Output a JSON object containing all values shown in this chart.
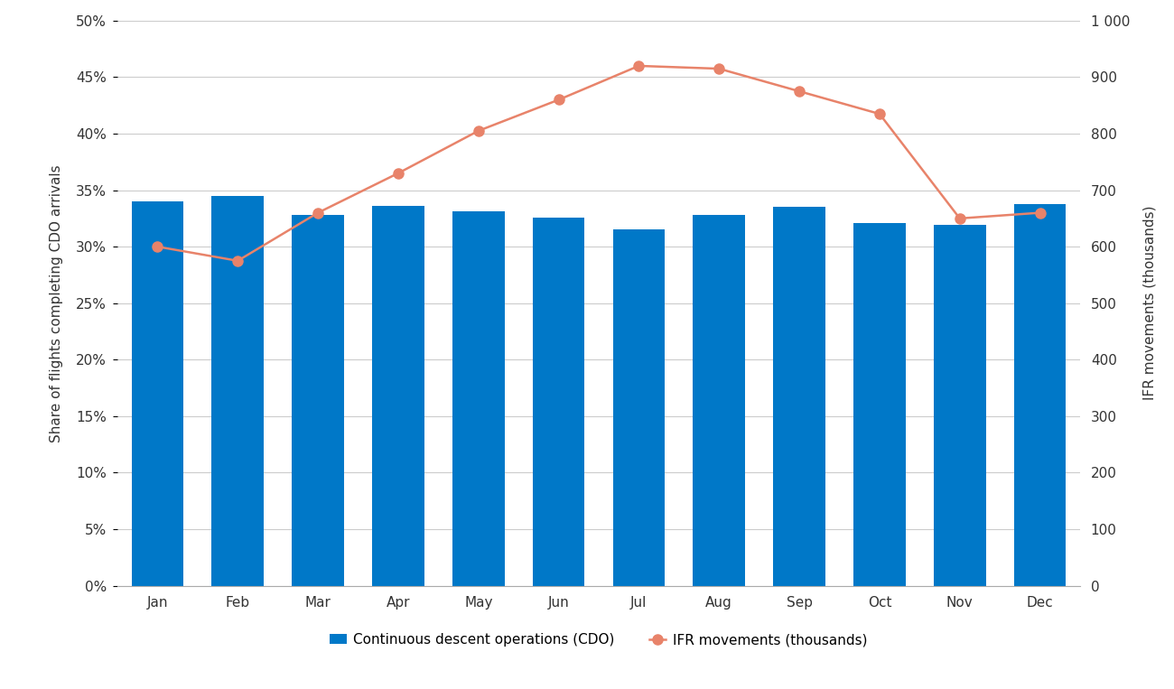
{
  "months": [
    "Jan",
    "Feb",
    "Mar",
    "Apr",
    "May",
    "Jun",
    "Jul",
    "Aug",
    "Sep",
    "Oct",
    "Nov",
    "Dec"
  ],
  "cdo_values": [
    0.34,
    0.345,
    0.328,
    0.336,
    0.331,
    0.326,
    0.315,
    0.328,
    0.335,
    0.321,
    0.319,
    0.338
  ],
  "ifr_values": [
    600,
    575,
    660,
    730,
    805,
    860,
    920,
    915,
    875,
    835,
    650,
    660
  ],
  "bar_color": "#0078C8",
  "line_color": "#E8836A",
  "marker_color": "#E8836A",
  "ylabel_left": "Share of flights completing CDO arrivals",
  "ylabel_right": "IFR movements (thousands)",
  "ylim_left": [
    0,
    0.5
  ],
  "ylim_right": [
    0,
    1000
  ],
  "yticks_left": [
    0,
    0.05,
    0.1,
    0.15,
    0.2,
    0.25,
    0.3,
    0.35,
    0.4,
    0.45,
    0.5
  ],
  "yticks_right": [
    0,
    100,
    200,
    300,
    400,
    500,
    600,
    700,
    800,
    900,
    1000
  ],
  "ytick_labels_right": [
    "0",
    "100",
    "200",
    "300",
    "400",
    "500",
    "600",
    "700",
    "800",
    "900",
    "1 000"
  ],
  "legend_cdo": "Continuous descent operations (CDO)",
  "legend_ifr": "IFR movements (thousands)",
  "background_color": "#ffffff",
  "grid_color": "#cccccc",
  "spine_color": "#aaaaaa",
  "tick_label_color": "#333333",
  "ylabel_fontsize": 11,
  "tick_fontsize": 11,
  "legend_fontsize": 11
}
